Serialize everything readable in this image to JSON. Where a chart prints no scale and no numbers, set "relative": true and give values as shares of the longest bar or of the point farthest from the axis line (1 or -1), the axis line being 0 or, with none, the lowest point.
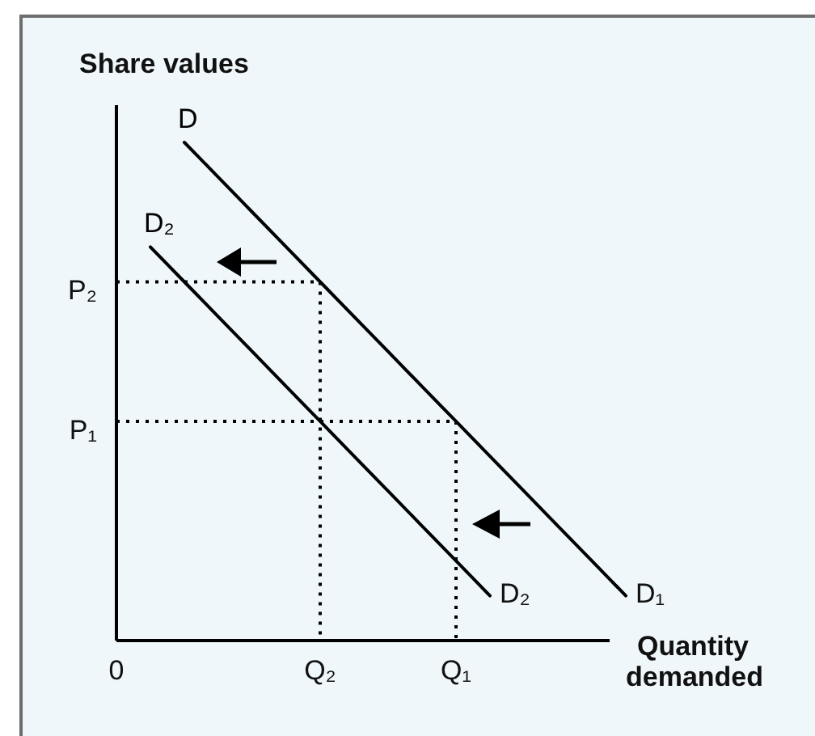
{
  "chart_data": {
    "type": "line",
    "relative": true,
    "xlabel": "Quantity demanded",
    "ylabel": "Share values",
    "categories": [
      "0",
      null,
      null,
      null,
      null,
      null,
      "Q₂",
      null,
      null,
      null,
      "Q₁",
      null,
      null,
      null,
      null,
      null
    ],
    "line_style": "solid",
    "series": [
      {
        "name": "D",
        "color": "#000000",
        "values": [
          null,
          null,
          1,
          0.93,
          0.86,
          0.79,
          0.72,
          0.65,
          0.58,
          0.51,
          0.44,
          0.37,
          0.3,
          0.23,
          0.16,
          0.09
        ]
      },
      {
        "name": "D₂",
        "color": "#000000",
        "values": [
          null,
          0.79,
          0.72,
          0.65,
          0.58,
          0.51,
          0.44,
          0.37,
          0.3,
          0.23,
          0.16,
          0.09,
          null,
          null,
          null,
          null
        ]
      },
      {
        "type": "step",
        "color": "#000000",
        "line_style": "dotted",
        "values": [
          0.72,
          0.72,
          0.72,
          0.72,
          0.72,
          0.72,
          0,
          null,
          null,
          null,
          null,
          null,
          null,
          null,
          null,
          null
        ]
      },
      {
        "type": "step",
        "color": "#000000",
        "line_style": "dotted",
        "values": [
          0.44,
          0.44,
          0.44,
          0.44,
          0.44,
          0.44,
          0.44,
          0.44,
          0.44,
          0.44,
          0,
          null,
          null,
          null,
          null,
          null
        ]
      }
    ],
    "annotations": [
      "D₁",
      "D₂",
      {
        "text": "P₂",
        "x": "0",
        "y": 0.72
      },
      {
        "text": "P₁",
        "x": "0",
        "y": 0.44
      }
    ]
  }
}
